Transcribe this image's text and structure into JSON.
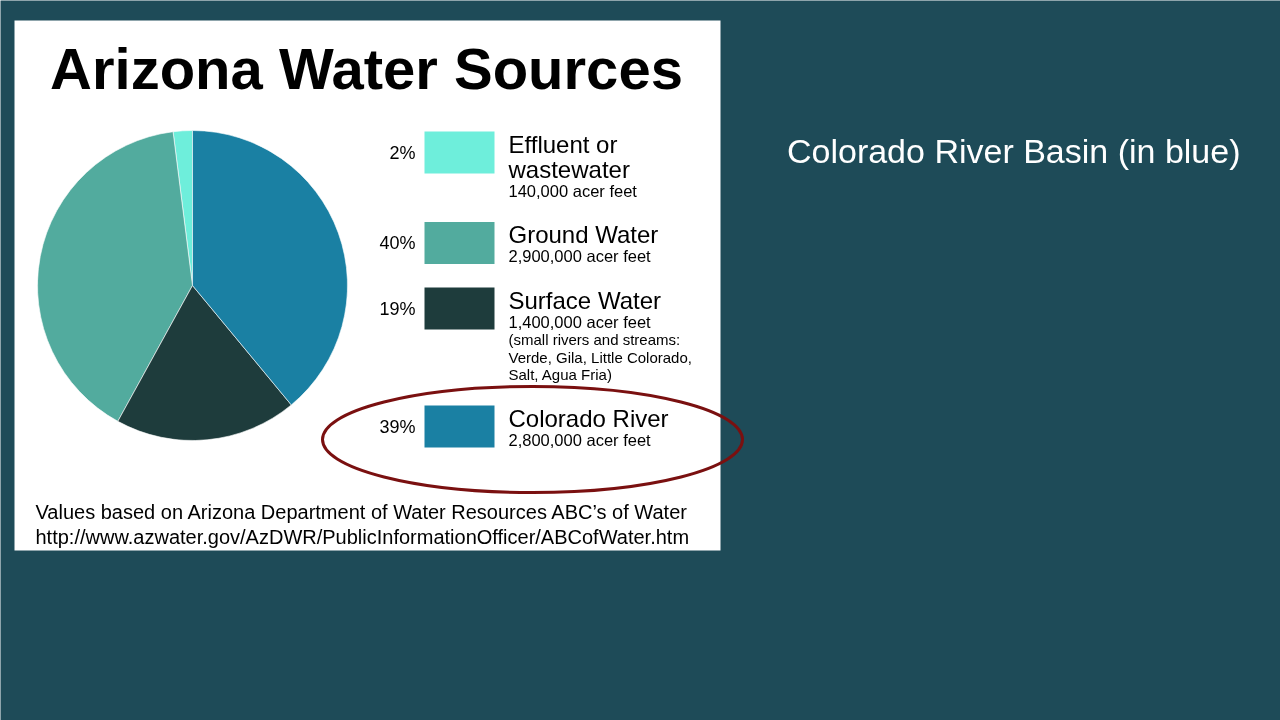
{
  "chart_data": {
    "type": "pie",
    "title": "Arizona Water Sources",
    "categories": [
      "Effluent or wastewater",
      "Ground Water",
      "Surface Water",
      "Colorado River"
    ],
    "values": [
      2,
      40,
      19,
      39
    ],
    "value_labels": [
      "2%",
      "40%",
      "19%",
      "39%"
    ],
    "colors": [
      "#6eeedb",
      "#52ab9e",
      "#1e3c3c",
      "#1a80a3"
    ],
    "legend": "right",
    "annotations": [
      "140,000 acer feet",
      "2,900,000 acer feet",
      "1,400,000 acer feet\n(small rivers and streams:\nVerde, Gila, Little Colorado,\nSalt, Agua Fria)",
      "2,800,000 acer feet",
      "Values based on Arizona Department of Water Resources ABC’s of Water",
      "http://www.azwater.gov/AzDWR/PublicInformationOfficer/ABCofWater.htm",
      "Colorado River Basin (in blue)"
    ]
  }
}
